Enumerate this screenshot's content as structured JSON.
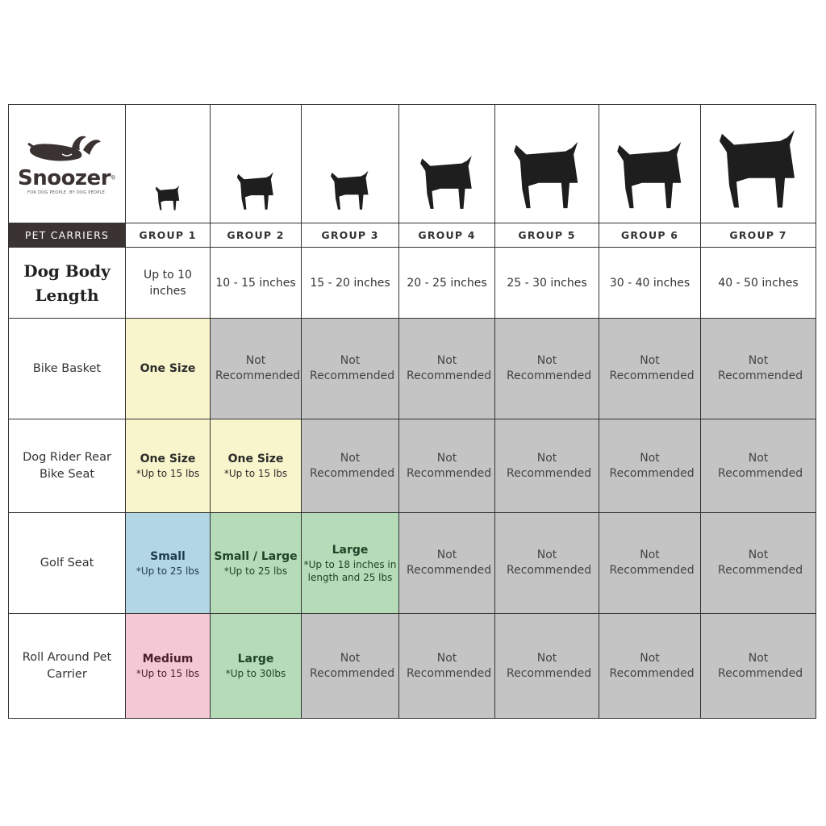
{
  "brand": {
    "name": "Snoozer",
    "registered": "®",
    "tagline": "FOR DOG PEOPLE. BY DOG PEOPLE."
  },
  "header_label": "PET CARRIERS",
  "length_label": "Dog Body Length",
  "groups": [
    {
      "label": "GROUP 1",
      "length": "Up to 10 inches",
      "icon": "chihuahua-icon"
    },
    {
      "label": "GROUP 2",
      "length": "10 - 15 inches",
      "icon": "pomeranian-icon"
    },
    {
      "label": "GROUP 3",
      "length": "15 - 20 inches",
      "icon": "boston-terrier-icon"
    },
    {
      "label": "GROUP 4",
      "length": "20 - 25 inches",
      "icon": "shiba-inu-icon"
    },
    {
      "label": "GROUP 5",
      "length": "25 - 30 inches",
      "icon": "golden-retriever-icon"
    },
    {
      "label": "GROUP 6",
      "length": "30 - 40 inches",
      "icon": "doberman-icon"
    },
    {
      "label": "GROUP 7",
      "length": "40 - 50 inches",
      "icon": "great-dane-icon"
    }
  ],
  "colors": {
    "yellow": "#f8f5cc",
    "blue": "#b3d6e5",
    "green": "#b6dbb9",
    "pink": "#f5c9d3",
    "gray": "#c4c4c4",
    "dark": "#3b3331"
  },
  "rows": [
    {
      "label": "Bike Basket",
      "cells": [
        {
          "main": "One Size",
          "sub": "",
          "color": "yellow"
        },
        {
          "main": "Not Recommended",
          "color": "gray",
          "nr": true
        },
        {
          "main": "Not Recommended",
          "color": "gray",
          "nr": true
        },
        {
          "main": "Not Recommended",
          "color": "gray",
          "nr": true
        },
        {
          "main": "Not Recommended",
          "color": "gray",
          "nr": true
        },
        {
          "main": "Not Recommended",
          "color": "gray",
          "nr": true
        },
        {
          "main": "Not Recommended",
          "color": "gray",
          "nr": true
        }
      ]
    },
    {
      "label": "Dog Rider Rear Bike Seat",
      "cells": [
        {
          "main": "One Size",
          "sub": "*Up to 15 lbs",
          "color": "yellow"
        },
        {
          "main": "One Size",
          "sub": "*Up to 15 lbs",
          "color": "yellow"
        },
        {
          "main": "Not Recommended",
          "color": "gray",
          "nr": true
        },
        {
          "main": "Not Recommended",
          "color": "gray",
          "nr": true
        },
        {
          "main": "Not Recommended",
          "color": "gray",
          "nr": true
        },
        {
          "main": "Not Recommended",
          "color": "gray",
          "nr": true
        },
        {
          "main": "Not Recommended",
          "color": "gray",
          "nr": true
        }
      ]
    },
    {
      "label": "Golf Seat",
      "cells": [
        {
          "main": "Small",
          "sub": "*Up to 25 lbs",
          "color": "blue"
        },
        {
          "main": "Small / Large",
          "sub": "*Up to 25 lbs",
          "color": "green"
        },
        {
          "main": "Large",
          "sub": "*Up to 18 inches in length and 25 lbs",
          "color": "green"
        },
        {
          "main": "Not Recommended",
          "color": "gray",
          "nr": true
        },
        {
          "main": "Not Recommended",
          "color": "gray",
          "nr": true
        },
        {
          "main": "Not Recommended",
          "color": "gray",
          "nr": true
        },
        {
          "main": "Not Recommended",
          "color": "gray",
          "nr": true
        }
      ]
    },
    {
      "label": "Roll Around Pet Carrier",
      "cells": [
        {
          "main": "Medium",
          "sub": "*Up to 15 lbs",
          "color": "pink"
        },
        {
          "main": "Large",
          "sub": "*Up to 30lbs",
          "color": "green"
        },
        {
          "main": "Not Recommended",
          "color": "gray",
          "nr": true
        },
        {
          "main": "Not Recommended",
          "color": "gray",
          "nr": true
        },
        {
          "main": "Not Recommended",
          "color": "gray",
          "nr": true
        },
        {
          "main": "Not Recommended",
          "color": "gray",
          "nr": true
        },
        {
          "main": "Not Recommended",
          "color": "gray",
          "nr": true
        }
      ]
    }
  ]
}
